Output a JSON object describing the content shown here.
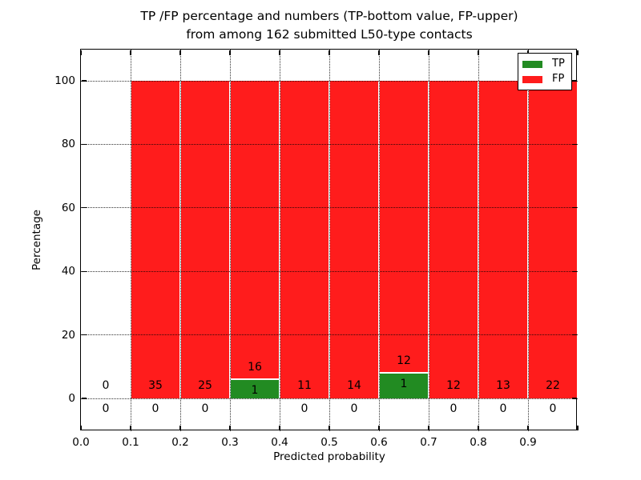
{
  "chart_data": {
    "type": "bar",
    "stacked": true,
    "title_line1": "TP /FP percentage and numbers (TP-bottom value, FP-upper)",
    "title_line2": "from among 162 submitted L50-type contacts",
    "xlabel": "Predicted probability",
    "ylabel": "Percentage",
    "total_contacts": 162,
    "x_tick_labels": [
      "0.0",
      "0.1",
      "0.2",
      "0.3",
      "0.4",
      "0.5",
      "0.6",
      "0.7",
      "0.8",
      "0.9"
    ],
    "y_tick_values": [
      0,
      20,
      40,
      60,
      80,
      100
    ],
    "y_tick_labels": [
      "0",
      "20",
      "40",
      "60",
      "80",
      "100"
    ],
    "xlim": [
      0.0,
      1.0
    ],
    "ylim": [
      -10.5,
      110.5
    ],
    "grid": "dotted",
    "bar_unit": "percent of bin (TP+FP stacked to 100%)",
    "bins": [
      {
        "x_start": 0.0,
        "x_end": 0.1,
        "tp": 0,
        "fp": 0
      },
      {
        "x_start": 0.1,
        "x_end": 0.2,
        "tp": 0,
        "fp": 35
      },
      {
        "x_start": 0.2,
        "x_end": 0.3,
        "tp": 0,
        "fp": 25
      },
      {
        "x_start": 0.3,
        "x_end": 0.4,
        "tp": 1,
        "fp": 16
      },
      {
        "x_start": 0.4,
        "x_end": 0.5,
        "tp": 0,
        "fp": 11
      },
      {
        "x_start": 0.5,
        "x_end": 0.6,
        "tp": 0,
        "fp": 14
      },
      {
        "x_start": 0.6,
        "x_end": 0.7,
        "tp": 1,
        "fp": 12
      },
      {
        "x_start": 0.7,
        "x_end": 0.8,
        "tp": 0,
        "fp": 12
      },
      {
        "x_start": 0.8,
        "x_end": 0.9,
        "tp": 0,
        "fp": 13
      },
      {
        "x_start": 0.9,
        "x_end": 1.0,
        "tp": 0,
        "fp": 22
      }
    ],
    "series": [
      {
        "name": "TP",
        "color": "#228b22",
        "values": [
          0,
          0,
          0,
          1,
          0,
          0,
          1,
          0,
          0,
          0
        ]
      },
      {
        "name": "FP",
        "color": "#ff1c1c",
        "values": [
          0,
          35,
          25,
          16,
          11,
          14,
          12,
          12,
          13,
          22
        ]
      }
    ],
    "legend": {
      "position": "upper right",
      "entries": [
        {
          "label": "TP",
          "color": "#228b22"
        },
        {
          "label": "FP",
          "color": "#ff1c1c"
        }
      ]
    },
    "colors": {
      "tp": "#228b22",
      "fp": "#ff1c1c",
      "grid": "#000000",
      "text": "#000000",
      "background": "#ffffff"
    }
  }
}
